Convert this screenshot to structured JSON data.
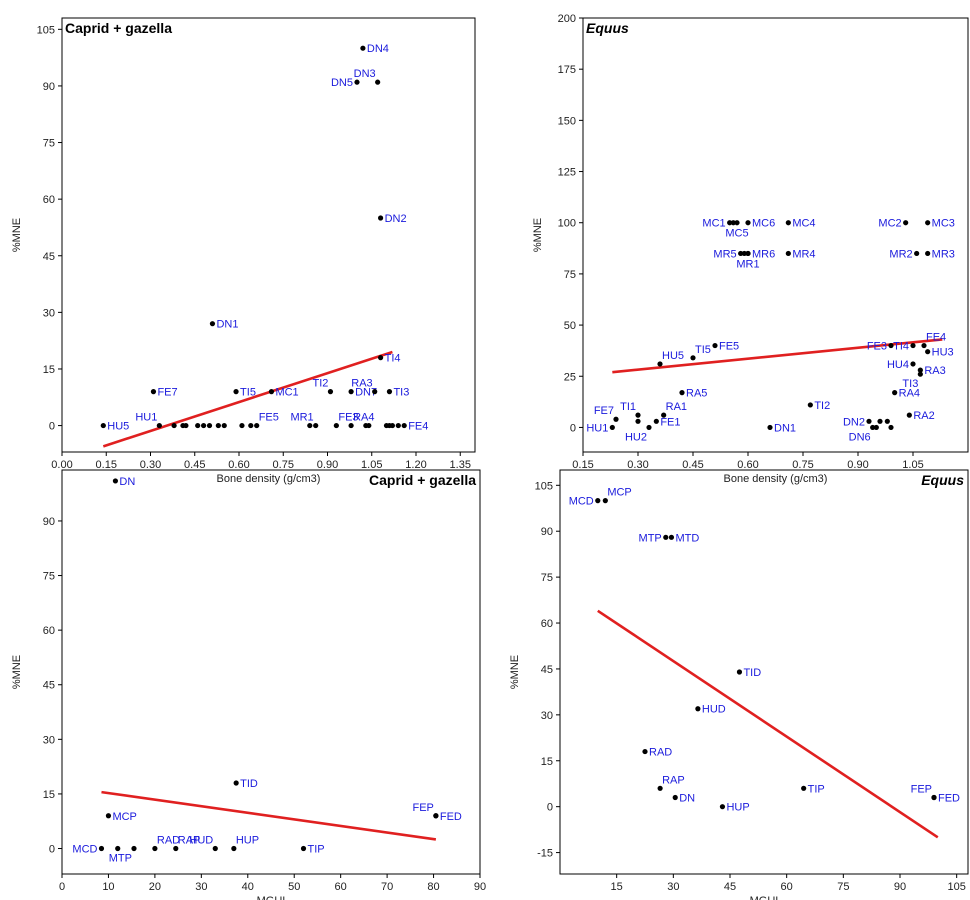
{
  "colors": {
    "point": "#000000",
    "label": "#1a1adc",
    "trend": "#e02020",
    "frame": "#000000"
  },
  "chart_data": [
    {
      "type": "scatter",
      "title": "Caprid + gazella",
      "title_italic": false,
      "title_align": "left",
      "xlabel": "Bone density (g/cm3)",
      "ylabel": "%MNE",
      "xlim": [
        0,
        1.4
      ],
      "ylim": [
        -7,
        108
      ],
      "xticks": [
        0.0,
        0.15,
        0.3,
        0.45,
        0.6,
        0.75,
        0.9,
        1.05,
        1.2,
        1.35
      ],
      "xtick_labels": [
        "0.00",
        "0.15",
        "0.30",
        "0.45",
        "0.60",
        "0.75",
        "0.90",
        "1.05",
        "1.20",
        "1.35"
      ],
      "yticks": [
        0,
        15,
        30,
        45,
        60,
        75,
        90,
        105
      ],
      "ytick_labels": [
        "0",
        "15",
        "30",
        "45",
        "60",
        "75",
        "90",
        "105"
      ],
      "trend": [
        [
          0.14,
          -5.5
        ],
        [
          1.12,
          19.5
        ]
      ],
      "points": [
        {
          "x": 0.14,
          "y": 0,
          "label": "HU5",
          "pos": "r"
        },
        {
          "x": 0.33,
          "y": 0,
          "label": "HU1",
          "pos": "lt"
        },
        {
          "x": 0.31,
          "y": 9,
          "label": "FE7",
          "pos": "r"
        },
        {
          "x": 0.38,
          "y": 0,
          "label": "",
          "pos": "r"
        },
        {
          "x": 0.41,
          "y": 0,
          "label": "",
          "pos": "r"
        },
        {
          "x": 0.42,
          "y": 0,
          "label": "",
          "pos": "r"
        },
        {
          "x": 0.46,
          "y": 0,
          "label": "",
          "pos": "r"
        },
        {
          "x": 0.48,
          "y": 0,
          "label": "",
          "pos": "r"
        },
        {
          "x": 0.5,
          "y": 0,
          "label": "",
          "pos": "r"
        },
        {
          "x": 0.53,
          "y": 0,
          "label": "",
          "pos": "r"
        },
        {
          "x": 0.55,
          "y": 0,
          "label": "",
          "pos": "r"
        },
        {
          "x": 0.61,
          "y": 0,
          "label": "",
          "pos": "r"
        },
        {
          "x": 0.64,
          "y": 0,
          "label": "",
          "pos": "r"
        },
        {
          "x": 0.66,
          "y": 0,
          "label": "FE5",
          "pos": "rt"
        },
        {
          "x": 0.51,
          "y": 27,
          "label": "DN1",
          "pos": "r"
        },
        {
          "x": 0.59,
          "y": 9,
          "label": "TI5",
          "pos": "r"
        },
        {
          "x": 0.71,
          "y": 9,
          "label": "MC1",
          "pos": "r"
        },
        {
          "x": 0.84,
          "y": 0,
          "label": "",
          "pos": "r"
        },
        {
          "x": 0.86,
          "y": 0,
          "label": "MR1",
          "pos": "lt"
        },
        {
          "x": 0.91,
          "y": 9,
          "label": "TI2",
          "pos": "lt"
        },
        {
          "x": 0.93,
          "y": 0,
          "label": "FE3",
          "pos": "rt"
        },
        {
          "x": 0.98,
          "y": 0,
          "label": "RA4",
          "pos": "rt"
        },
        {
          "x": 0.98,
          "y": 9,
          "label": "DN7",
          "pos": "r"
        },
        {
          "x": 1.03,
          "y": 0,
          "label": "",
          "pos": "r"
        },
        {
          "x": 1.04,
          "y": 0,
          "label": "",
          "pos": "r"
        },
        {
          "x": 1.06,
          "y": 9,
          "label": "RA3",
          "pos": "lt"
        },
        {
          "x": 1.1,
          "y": 0,
          "label": "",
          "pos": "r"
        },
        {
          "x": 1.11,
          "y": 0,
          "label": "",
          "pos": "r"
        },
        {
          "x": 1.12,
          "y": 0,
          "label": "",
          "pos": "r"
        },
        {
          "x": 1.14,
          "y": 0,
          "label": "",
          "pos": "r"
        },
        {
          "x": 1.16,
          "y": 0,
          "label": "FE4",
          "pos": "r"
        },
        {
          "x": 1.11,
          "y": 9,
          "label": "TI3",
          "pos": "r"
        },
        {
          "x": 1.08,
          "y": 18,
          "label": "TI4",
          "pos": "r"
        },
        {
          "x": 1.08,
          "y": 55,
          "label": "DN2",
          "pos": "r"
        },
        {
          "x": 1.0,
          "y": 91,
          "label": "DN5",
          "pos": "l"
        },
        {
          "x": 1.07,
          "y": 91,
          "label": "DN3",
          "pos": "lt"
        },
        {
          "x": 1.02,
          "y": 100,
          "label": "DN4",
          "pos": "r"
        }
      ]
    },
    {
      "type": "scatter",
      "title": "Equus",
      "title_italic": true,
      "title_align": "left",
      "xlabel": "Bone density (g/cm3)",
      "ylabel": "%MNE",
      "xlim": [
        0.15,
        1.2
      ],
      "ylim": [
        -12,
        200
      ],
      "xticks": [
        0.15,
        0.3,
        0.45,
        0.6,
        0.75,
        0.9,
        1.05
      ],
      "xtick_labels": [
        "0.15",
        "0.30",
        "0.45",
        "0.60",
        "0.75",
        "0.90",
        "1.05"
      ],
      "yticks": [
        0,
        25,
        50,
        75,
        100,
        125,
        150,
        175,
        200
      ],
      "ytick_labels": [
        "0",
        "25",
        "50",
        "75",
        "100",
        "125",
        "150",
        "175",
        "200"
      ],
      "trend": [
        [
          0.23,
          27
        ],
        [
          1.13,
          43
        ]
      ],
      "points": [
        {
          "x": 0.23,
          "y": 0,
          "label": "HU1",
          "pos": "l"
        },
        {
          "x": 0.24,
          "y": 4,
          "label": "FE7",
          "pos": "lt"
        },
        {
          "x": 0.3,
          "y": 3,
          "label": "",
          "pos": "r"
        },
        {
          "x": 0.3,
          "y": 6,
          "label": "TI1",
          "pos": "lt"
        },
        {
          "x": 0.33,
          "y": 0,
          "label": "HU2",
          "pos": "lb"
        },
        {
          "x": 0.35,
          "y": 3,
          "label": "FE1",
          "pos": "r"
        },
        {
          "x": 0.37,
          "y": 6,
          "label": "RA1",
          "pos": "rt"
        },
        {
          "x": 0.36,
          "y": 31,
          "label": "HU5",
          "pos": "rt"
        },
        {
          "x": 0.42,
          "y": 17,
          "label": "RA5",
          "pos": "r"
        },
        {
          "x": 0.45,
          "y": 34,
          "label": "TI5",
          "pos": "rt"
        },
        {
          "x": 0.51,
          "y": 40,
          "label": "FE5",
          "pos": "r"
        },
        {
          "x": 0.55,
          "y": 100,
          "label": "MC1",
          "pos": "l"
        },
        {
          "x": 0.56,
          "y": 100,
          "label": "",
          "pos": "r"
        },
        {
          "x": 0.6,
          "y": 100,
          "label": "MC6",
          "pos": "r"
        },
        {
          "x": 0.57,
          "y": 100,
          "label": "MC5",
          "pos": "b"
        },
        {
          "x": 0.58,
          "y": 85,
          "label": "MR5",
          "pos": "l"
        },
        {
          "x": 0.59,
          "y": 85,
          "label": "",
          "pos": "r"
        },
        {
          "x": 0.6,
          "y": 85,
          "label": "MR6",
          "pos": "r"
        },
        {
          "x": 0.6,
          "y": 85,
          "label": "MR1",
          "pos": "b"
        },
        {
          "x": 0.66,
          "y": 0,
          "label": "DN1",
          "pos": "r"
        },
        {
          "x": 0.71,
          "y": 100,
          "label": "MC4",
          "pos": "r"
        },
        {
          "x": 0.71,
          "y": 85,
          "label": "MR4",
          "pos": "r"
        },
        {
          "x": 0.77,
          "y": 11,
          "label": "TI2",
          "pos": "r"
        },
        {
          "x": 0.93,
          "y": 3,
          "label": "DN2",
          "pos": "l"
        },
        {
          "x": 0.94,
          "y": 0,
          "label": "DN6",
          "pos": "lb"
        },
        {
          "x": 0.95,
          "y": 0,
          "label": "",
          "pos": "r"
        },
        {
          "x": 0.96,
          "y": 3,
          "label": "",
          "pos": "r"
        },
        {
          "x": 0.98,
          "y": 3,
          "label": "",
          "pos": "r"
        },
        {
          "x": 0.99,
          "y": 0,
          "label": "",
          "pos": "r"
        },
        {
          "x": 1.0,
          "y": 17,
          "label": "RA4",
          "pos": "r"
        },
        {
          "x": 1.04,
          "y": 6,
          "label": "RA2",
          "pos": "r"
        },
        {
          "x": 0.99,
          "y": 40,
          "label": "FE3",
          "pos": "l"
        },
        {
          "x": 1.05,
          "y": 40,
          "label": "TI4",
          "pos": "l"
        },
        {
          "x": 1.08,
          "y": 40,
          "label": "FE4",
          "pos": "rt"
        },
        {
          "x": 1.09,
          "y": 37,
          "label": "HU3",
          "pos": "r"
        },
        {
          "x": 1.05,
          "y": 31,
          "label": "HU4",
          "pos": "l"
        },
        {
          "x": 1.07,
          "y": 28,
          "label": "RA3",
          "pos": "r"
        },
        {
          "x": 1.07,
          "y": 26,
          "label": "TI3",
          "pos": "lb"
        },
        {
          "x": 1.03,
          "y": 100,
          "label": "MC2",
          "pos": "l"
        },
        {
          "x": 1.09,
          "y": 100,
          "label": "MC3",
          "pos": "r"
        },
        {
          "x": 1.06,
          "y": 85,
          "label": "MR2",
          "pos": "l"
        },
        {
          "x": 1.09,
          "y": 85,
          "label": "MR3",
          "pos": "r"
        }
      ]
    },
    {
      "type": "scatter",
      "title": "Caprid + gazella",
      "title_italic": false,
      "title_align": "right",
      "xlabel": "MGUI",
      "ylabel": "%MNE",
      "xlim": [
        0,
        90
      ],
      "ylim": [
        -7,
        104
      ],
      "xticks": [
        0,
        10,
        20,
        30,
        40,
        50,
        60,
        70,
        80,
        90
      ],
      "xtick_labels": [
        "0",
        "10",
        "20",
        "30",
        "40",
        "50",
        "60",
        "70",
        "80",
        "90"
      ],
      "yticks": [
        0,
        15,
        30,
        45,
        60,
        75,
        90
      ],
      "ytick_labels": [
        "0",
        "15",
        "30",
        "45",
        "60",
        "75",
        "90"
      ],
      "trend": [
        [
          8.5,
          15.5
        ],
        [
          80.5,
          2.5
        ]
      ],
      "points": [
        {
          "x": 8.5,
          "y": 0,
          "label": "MCD",
          "pos": "l"
        },
        {
          "x": 12,
          "y": 0,
          "label": "",
          "pos": "r"
        },
        {
          "x": 15.5,
          "y": 0,
          "label": "MTP",
          "pos": "lb"
        },
        {
          "x": 10,
          "y": 9,
          "label": "MCP",
          "pos": "r"
        },
        {
          "x": 20,
          "y": 0,
          "label": "RAD",
          "pos": "rt"
        },
        {
          "x": 24.5,
          "y": 0,
          "label": "RAP",
          "pos": "rt"
        },
        {
          "x": 33,
          "y": 0,
          "label": "HUD",
          "pos": "lt"
        },
        {
          "x": 37,
          "y": 0,
          "label": "HUP",
          "pos": "rt"
        },
        {
          "x": 11.5,
          "y": 101,
          "label": "DN",
          "pos": "r"
        },
        {
          "x": 37.5,
          "y": 18,
          "label": "TID",
          "pos": "r"
        },
        {
          "x": 52,
          "y": 0,
          "label": "TIP",
          "pos": "r"
        },
        {
          "x": 80.5,
          "y": 9,
          "label": "FEP",
          "pos": "lt"
        },
        {
          "x": 80.5,
          "y": 9,
          "label": "FED",
          "pos": "r"
        }
      ]
    },
    {
      "type": "scatter",
      "title": "Equus",
      "title_italic": true,
      "title_align": "right",
      "xlabel": "MGUI",
      "ylabel": "%MNE",
      "xlim": [
        0,
        108
      ],
      "ylim": [
        -22,
        110
      ],
      "xticks": [
        15,
        30,
        45,
        60,
        75,
        90,
        105
      ],
      "xtick_labels": [
        "15",
        "30",
        "45",
        "60",
        "75",
        "90",
        "105"
      ],
      "yticks": [
        -15,
        0,
        15,
        30,
        45,
        60,
        75,
        90,
        105
      ],
      "ytick_labels": [
        "-15",
        "0",
        "15",
        "30",
        "45",
        "60",
        "75",
        "90",
        "105"
      ],
      "trend": [
        [
          10,
          64
        ],
        [
          100,
          -10
        ]
      ],
      "points": [
        {
          "x": 10,
          "y": 100,
          "label": "MCD",
          "pos": "l"
        },
        {
          "x": 12,
          "y": 100,
          "label": "MCP",
          "pos": "rt"
        },
        {
          "x": 28,
          "y": 88,
          "label": "MTP",
          "pos": "l"
        },
        {
          "x": 29.5,
          "y": 88,
          "label": "MTD",
          "pos": "r"
        },
        {
          "x": 47.5,
          "y": 44,
          "label": "TID",
          "pos": "r"
        },
        {
          "x": 36.5,
          "y": 32,
          "label": "HUD",
          "pos": "r"
        },
        {
          "x": 22.5,
          "y": 18,
          "label": "RAD",
          "pos": "r"
        },
        {
          "x": 26.5,
          "y": 6,
          "label": "RAP",
          "pos": "rt"
        },
        {
          "x": 30.5,
          "y": 3,
          "label": "DN",
          "pos": "r"
        },
        {
          "x": 43,
          "y": 0,
          "label": "HUP",
          "pos": "r"
        },
        {
          "x": 64.5,
          "y": 6,
          "label": "TIP",
          "pos": "r"
        },
        {
          "x": 99,
          "y": 3,
          "label": "FEP",
          "pos": "lt"
        },
        {
          "x": 99,
          "y": 3,
          "label": "FED",
          "pos": "r"
        }
      ]
    }
  ]
}
